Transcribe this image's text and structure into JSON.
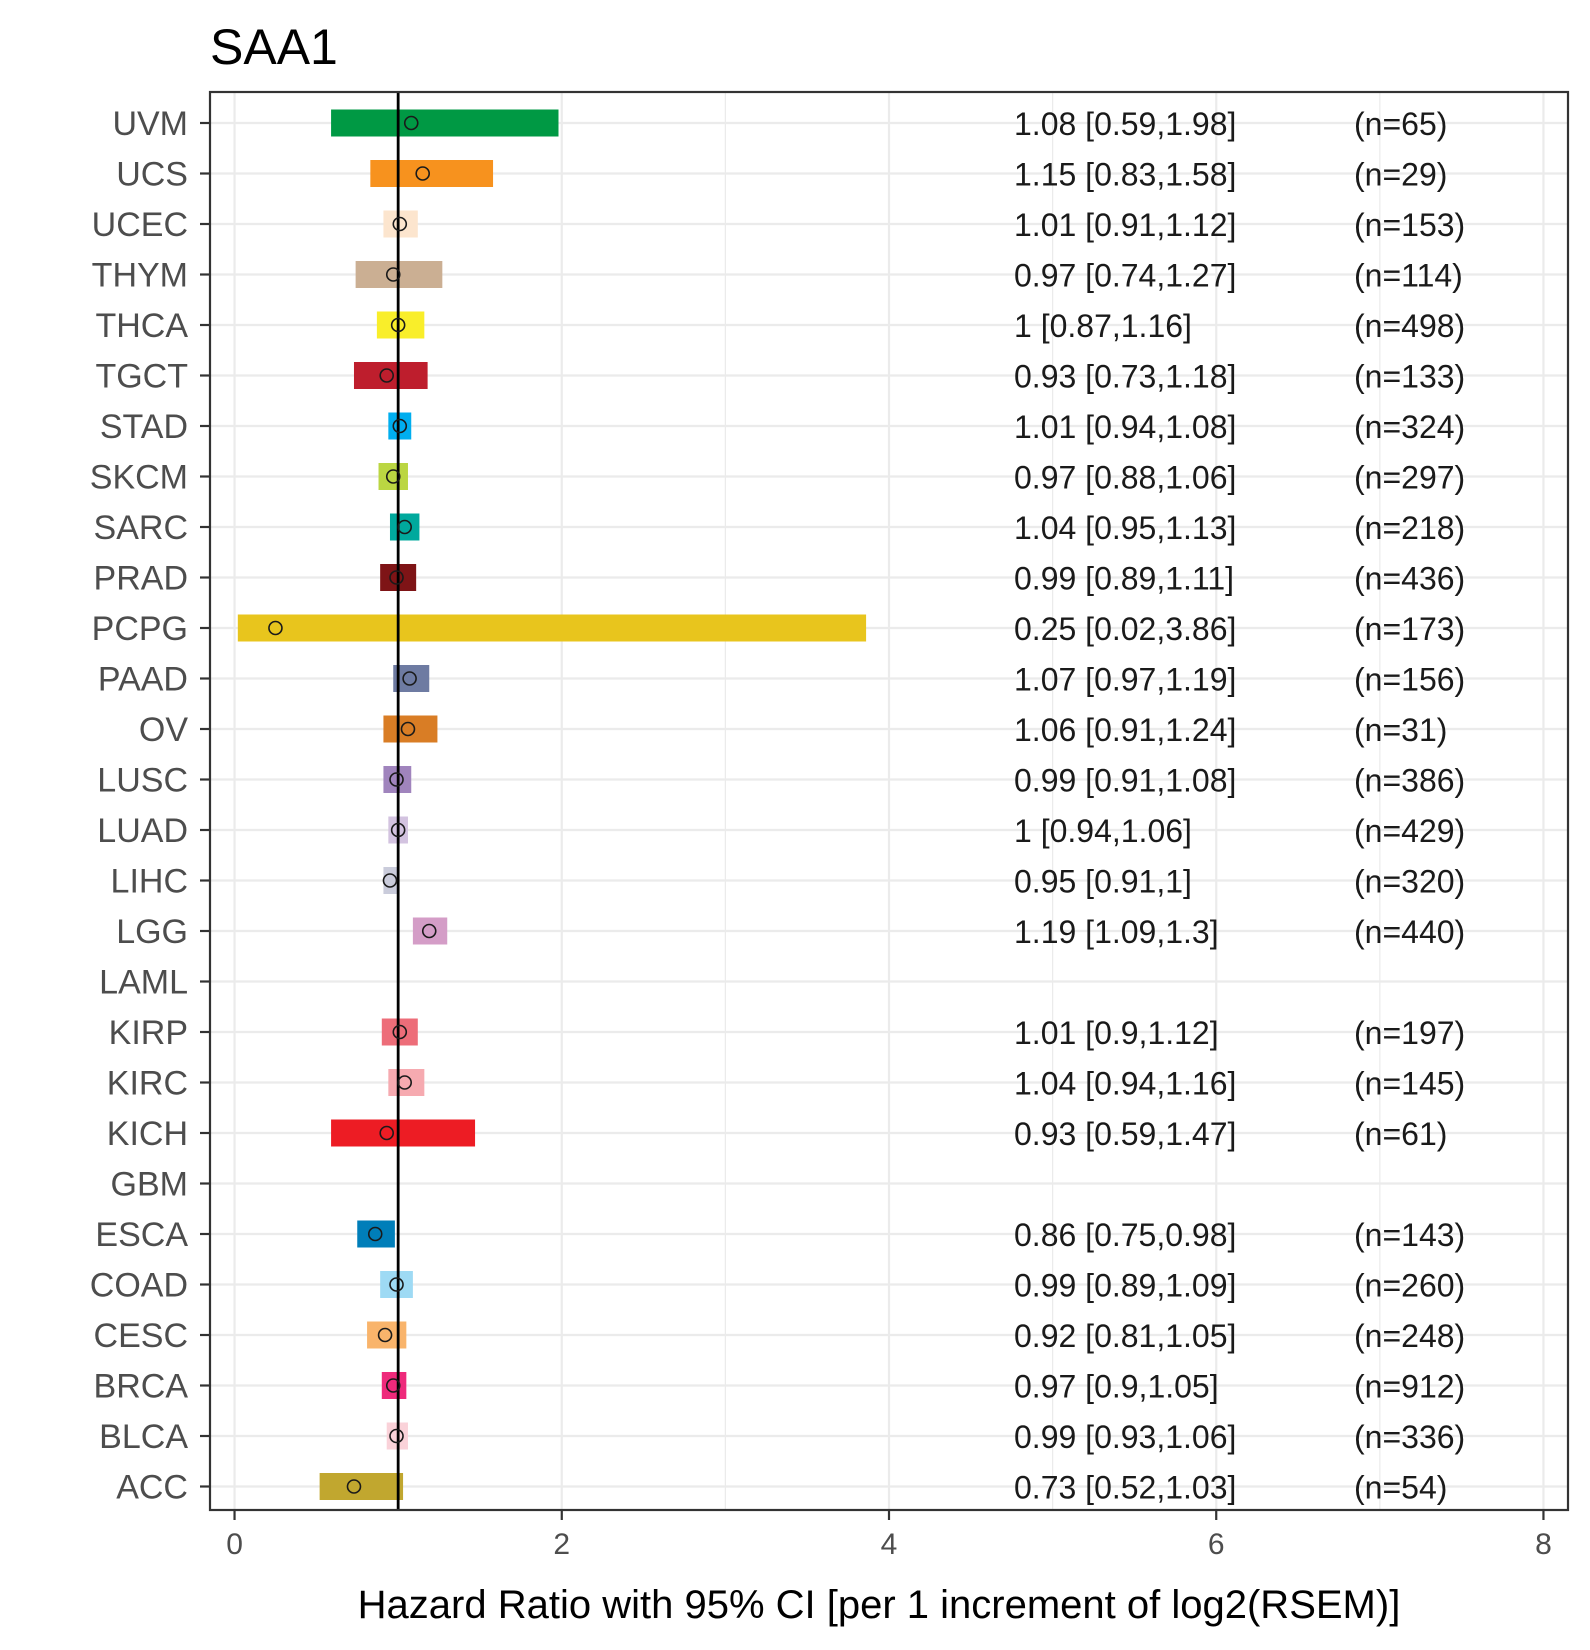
{
  "chart_data": {
    "type": "forest",
    "title": "SAA1",
    "xlabel": "Hazard Ratio with 95% CI [per 1 increment of log2(RSEM)]",
    "ylabel": "",
    "xlim": [
      -0.15,
      8.15
    ],
    "xticks": [
      "0",
      "2",
      "4",
      "6",
      "8"
    ],
    "reference_line": 1,
    "grid": true,
    "legend": "none",
    "rows": [
      {
        "cancer": "UVM",
        "hr": 1.08,
        "lo": 0.59,
        "hi": 1.98,
        "label": "1.08 [0.59,1.98]",
        "n": "(n=65)",
        "color": "#009944"
      },
      {
        "cancer": "UCS",
        "hr": 1.15,
        "lo": 0.83,
        "hi": 1.58,
        "label": "1.15 [0.83,1.58]",
        "n": "(n=29)",
        "color": "#F7921E"
      },
      {
        "cancer": "UCEC",
        "hr": 1.01,
        "lo": 0.91,
        "hi": 1.12,
        "label": "1.01 [0.91,1.12]",
        "n": "(n=153)",
        "color": "#FCE5CE"
      },
      {
        "cancer": "THYM",
        "hr": 0.97,
        "lo": 0.74,
        "hi": 1.27,
        "label": "0.97 [0.74,1.27]",
        "n": "(n=114)",
        "color": "#CBAF93"
      },
      {
        "cancer": "THCA",
        "hr": 1,
        "lo": 0.87,
        "hi": 1.16,
        "label": "1 [0.87,1.16]",
        "n": "(n=498)",
        "color": "#F9EE2A"
      },
      {
        "cancer": "TGCT",
        "hr": 0.93,
        "lo": 0.73,
        "hi": 1.18,
        "label": "0.93 [0.73,1.18]",
        "n": "(n=133)",
        "color": "#BE1E2D"
      },
      {
        "cancer": "STAD",
        "hr": 1.01,
        "lo": 0.94,
        "hi": 1.08,
        "label": "1.01 [0.94,1.08]",
        "n": "(n=324)",
        "color": "#00AEEF"
      },
      {
        "cancer": "SKCM",
        "hr": 0.97,
        "lo": 0.88,
        "hi": 1.06,
        "label": "0.97 [0.88,1.06]",
        "n": "(n=297)",
        "color": "#BBD642"
      },
      {
        "cancer": "SARC",
        "hr": 1.04,
        "lo": 0.95,
        "hi": 1.13,
        "label": "1.04 [0.95,1.13]",
        "n": "(n=218)",
        "color": "#00A99D"
      },
      {
        "cancer": "PRAD",
        "hr": 0.99,
        "lo": 0.89,
        "hi": 1.11,
        "label": "0.99 [0.89,1.11]",
        "n": "(n=436)",
        "color": "#7E1416"
      },
      {
        "cancer": "PCPG",
        "hr": 0.25,
        "lo": 0.02,
        "hi": 3.86,
        "label": "0.25 [0.02,3.86]",
        "n": "(n=173)",
        "color": "#E8C51D"
      },
      {
        "cancer": "PAAD",
        "hr": 1.07,
        "lo": 0.97,
        "hi": 1.19,
        "label": "1.07 [0.97,1.19]",
        "n": "(n=156)",
        "color": "#6E7BA2"
      },
      {
        "cancer": "OV",
        "hr": 1.06,
        "lo": 0.91,
        "hi": 1.24,
        "label": "1.06 [0.91,1.24]",
        "n": "(n=31)",
        "color": "#D97D25"
      },
      {
        "cancer": "LUSC",
        "hr": 0.99,
        "lo": 0.91,
        "hi": 1.08,
        "label": "0.99 [0.91,1.08]",
        "n": "(n=386)",
        "color": "#A084BD"
      },
      {
        "cancer": "LUAD",
        "hr": 1,
        "lo": 0.94,
        "hi": 1.06,
        "label": "1 [0.94,1.06]",
        "n": "(n=429)",
        "color": "#D3C3E0"
      },
      {
        "cancer": "LIHC",
        "hr": 0.95,
        "lo": 0.91,
        "hi": 1,
        "label": "0.95 [0.91,1]",
        "n": "(n=320)",
        "color": "#CACCDB"
      },
      {
        "cancer": "LGG",
        "hr": 1.19,
        "lo": 1.09,
        "hi": 1.3,
        "label": "1.19 [1.09,1.3]",
        "n": "(n=440)",
        "color": "#D49DC7"
      },
      {
        "cancer": "LAML",
        "hr": null,
        "lo": null,
        "hi": null,
        "label": "",
        "n": "",
        "color": "#FFFFFF"
      },
      {
        "cancer": "KIRP",
        "hr": 1.01,
        "lo": 0.9,
        "hi": 1.12,
        "label": "1.01 [0.9,1.12]",
        "n": "(n=197)",
        "color": "#ED6D79"
      },
      {
        "cancer": "KIRC",
        "hr": 1.04,
        "lo": 0.94,
        "hi": 1.16,
        "label": "1.04 [0.94,1.16]",
        "n": "(n=145)",
        "color": "#F6AAB0"
      },
      {
        "cancer": "KICH",
        "hr": 0.93,
        "lo": 0.59,
        "hi": 1.47,
        "label": "0.93 [0.59,1.47]",
        "n": "(n=61)",
        "color": "#ED1C24"
      },
      {
        "cancer": "GBM",
        "hr": null,
        "lo": null,
        "hi": null,
        "label": "",
        "n": "",
        "color": "#FFFFFF"
      },
      {
        "cancer": "ESCA",
        "hr": 0.86,
        "lo": 0.75,
        "hi": 0.98,
        "label": "0.86 [0.75,0.98]",
        "n": "(n=143)",
        "color": "#007EB9"
      },
      {
        "cancer": "COAD",
        "hr": 0.99,
        "lo": 0.89,
        "hi": 1.09,
        "label": "0.99 [0.89,1.09]",
        "n": "(n=260)",
        "color": "#9EDAF4"
      },
      {
        "cancer": "CESC",
        "hr": 0.92,
        "lo": 0.81,
        "hi": 1.05,
        "label": "0.92 [0.81,1.05]",
        "n": "(n=248)",
        "color": "#F9B46B"
      },
      {
        "cancer": "BRCA",
        "hr": 0.97,
        "lo": 0.9,
        "hi": 1.05,
        "label": "0.97 [0.9,1.05]",
        "n": "(n=912)",
        "color": "#EE2A7B"
      },
      {
        "cancer": "BLCA",
        "hr": 0.99,
        "lo": 0.93,
        "hi": 1.06,
        "label": "0.99 [0.93,1.06]",
        "n": "(n=336)",
        "color": "#FAD2D9"
      },
      {
        "cancer": "ACC",
        "hr": 0.73,
        "lo": 0.52,
        "hi": 1.03,
        "label": "0.73 [0.52,1.03]",
        "n": "(n=54)",
        "color": "#C1A72F"
      }
    ]
  }
}
